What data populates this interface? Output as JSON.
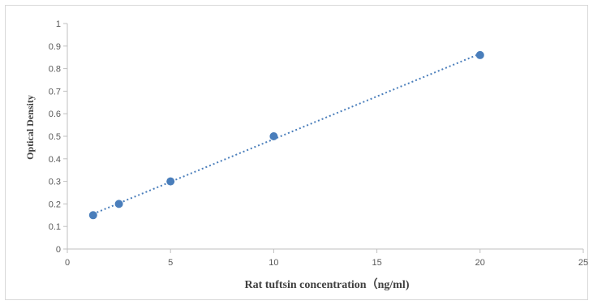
{
  "chart_data": {
    "type": "scatter",
    "xlabel": "Rat tuftsin concentration（ng/ml)",
    "ylabel": "Optical Density",
    "xlim": [
      0,
      25
    ],
    "ylim": [
      0,
      1
    ],
    "x_ticks": [
      "0",
      "5",
      "10",
      "15",
      "20",
      "25"
    ],
    "y_ticks": [
      "0",
      "0.1",
      "0.2",
      "0.3",
      "0.4",
      "0.5",
      "0.6",
      "0.7",
      "0.8",
      "0.9",
      "1"
    ],
    "grid": false,
    "legend": "none",
    "trendline": "linear, dotted",
    "series": [
      {
        "x": [
          1.25,
          2.5,
          5,
          10,
          20
        ],
        "y": [
          0.15,
          0.2,
          0.3,
          0.5,
          0.86
        ]
      }
    ],
    "colors": {
      "marker": "#4a7ebb",
      "trendline": "#4a7ebb",
      "axis": "#bfbfbf"
    }
  }
}
